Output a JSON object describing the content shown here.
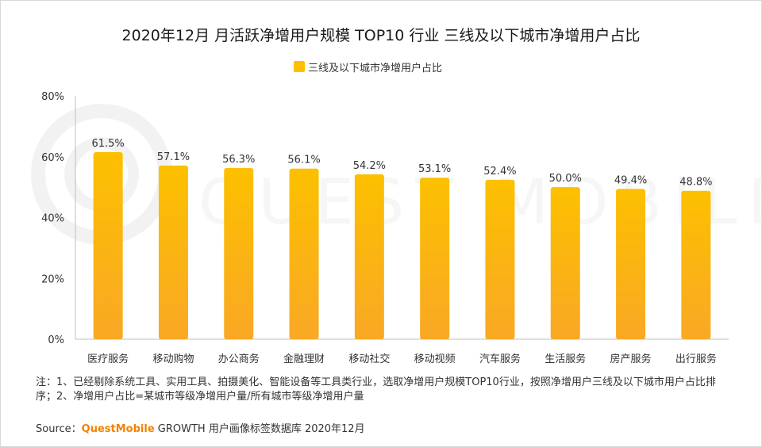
{
  "title": "2020年12月 月活跃净增用户规模 TOP10 行业 三线及以下城市净增用户占比",
  "note": "注：1、已经剔除系统工具、实用工具、拍摄美化、智能设备等工具类行业，选取净增用户规模TOP10行业，按照净增用户三线及以下城市用户占比排序；2、净增用户占比=某城市等级净增用户量/所有城市等级净增用户量",
  "source": {
    "prefix": "Source：",
    "brand": "QuestMobile",
    "suffix": " GROWTH 用户画像标签数据库 2020年12月"
  },
  "colors": {
    "bar_top": "#fcc000",
    "bar_bottom": "#f9a825",
    "watermark": "#eeeeee"
  },
  "chart_data": {
    "type": "bar",
    "title": "2020年12月 月活跃净增用户规模 TOP10 行业 三线及以下城市净增用户占比",
    "legend": [
      "三线及以下城市净增用户占比"
    ],
    "categories": [
      "医疗服务",
      "移动购物",
      "办公商务",
      "金融理财",
      "移动社交",
      "移动视频",
      "汽车服务",
      "生活服务",
      "房产服务",
      "出行服务"
    ],
    "series": [
      {
        "name": "三线及以下城市净增用户占比",
        "values": [
          61.5,
          57.1,
          56.3,
          56.1,
          54.2,
          53.1,
          52.4,
          50.0,
          49.4,
          48.8
        ]
      }
    ],
    "data_labels": [
      "61.5%",
      "57.1%",
      "56.3%",
      "56.1%",
      "54.2%",
      "53.1%",
      "52.4%",
      "50.0%",
      "49.4%",
      "48.8%"
    ],
    "ylim": [
      0,
      80
    ],
    "yticks": [
      0,
      20,
      40,
      60,
      80
    ],
    "ytick_labels": [
      "0%",
      "20%",
      "40%",
      "60%",
      "80%"
    ],
    "grid": false
  }
}
